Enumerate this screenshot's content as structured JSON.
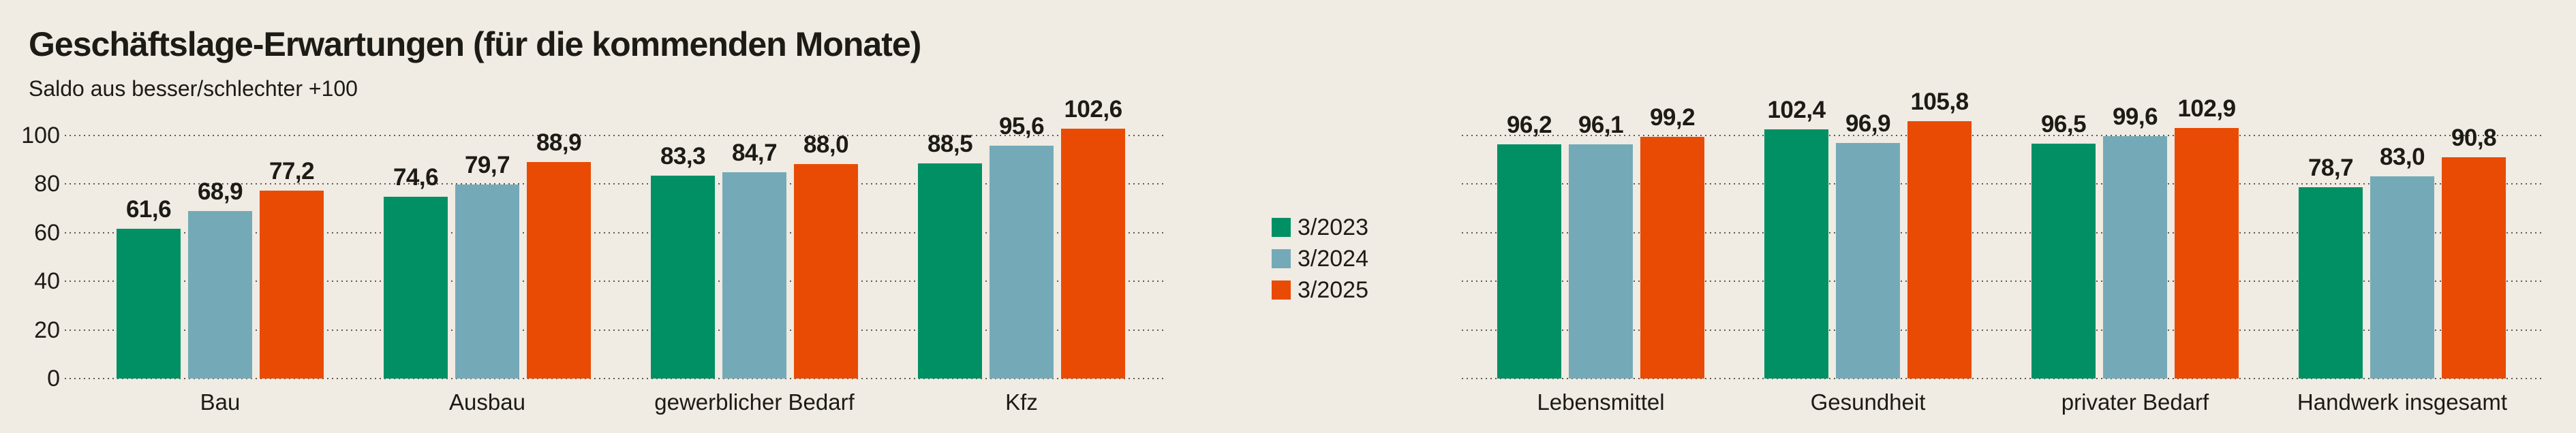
{
  "page": {
    "background_color": "#f0ebe3",
    "text_color": "#1d1b15",
    "gridline_color": "#5e5a52"
  },
  "header": {
    "title": "Geschäftslage-Erwartungen (für die kommenden Monate)",
    "subtitle": "Saldo aus besser/schlechter +100"
  },
  "legend": {
    "items": [
      {
        "label": "3/2023",
        "color": "#009064"
      },
      {
        "label": "3/2024",
        "color": "#74aab8"
      },
      {
        "label": "3/2025",
        "color": "#e94b04"
      }
    ]
  },
  "chart_data": {
    "type": "bar",
    "title": "Geschäftslage-Erwartungen (für die kommenden Monate)",
    "subtitle": "Saldo aus besser/schlechter +100",
    "ylabel": "Saldo aus besser/schlechter +100",
    "yticks": [
      0,
      20,
      40,
      60,
      80,
      100
    ],
    "ylim": [
      0,
      110
    ],
    "grid": "horizontal dotted",
    "legend_position": "center between panels",
    "decimal_separator": ",",
    "series_colors": [
      "#009064",
      "#74aab8",
      "#e94b04"
    ],
    "panels": [
      {
        "name": "left",
        "categories": [
          "Bau",
          "Ausbau",
          "gewerblicher Bedarf",
          "Kfz"
        ],
        "series": [
          {
            "name": "3/2023",
            "values": [
              61.6,
              74.6,
              83.3,
              88.5
            ]
          },
          {
            "name": "3/2024",
            "values": [
              68.9,
              79.7,
              84.7,
              95.6
            ]
          },
          {
            "name": "3/2025",
            "values": [
              77.2,
              88.9,
              88.0,
              102.6
            ]
          }
        ]
      },
      {
        "name": "right",
        "categories": [
          "Lebensmittel",
          "Gesundheit",
          "privater Bedarf",
          "Handwerk insgesamt"
        ],
        "series": [
          {
            "name": "3/2023",
            "values": [
              96.2,
              102.4,
              96.5,
              78.7
            ]
          },
          {
            "name": "3/2024",
            "values": [
              96.1,
              96.9,
              99.6,
              83.0
            ]
          },
          {
            "name": "3/2025",
            "values": [
              99.2,
              105.8,
              102.9,
              90.8
            ]
          }
        ]
      }
    ]
  }
}
